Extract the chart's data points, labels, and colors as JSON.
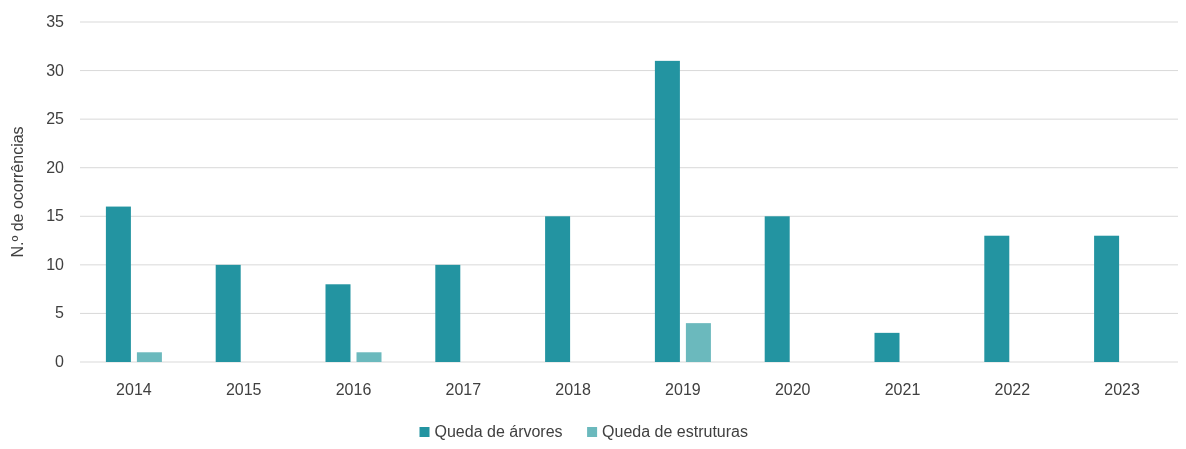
{
  "chart_data": {
    "type": "bar",
    "ylabel": "N.º de ocorrências",
    "categories": [
      "2014",
      "2015",
      "2016",
      "2017",
      "2018",
      "2019",
      "2020",
      "2021",
      "2022",
      "2023"
    ],
    "series": [
      {
        "name": "Queda de árvores",
        "color": "#2394a1",
        "values": [
          16,
          10,
          8,
          10,
          15,
          31,
          15,
          3,
          13,
          13
        ]
      },
      {
        "name": "Queda de estruturas",
        "color": "#6bb9bd",
        "values": [
          1,
          0,
          1,
          0,
          0,
          4,
          0,
          0,
          0,
          0
        ]
      }
    ],
    "ylim": [
      0,
      35
    ],
    "yticks": [
      0,
      5,
      10,
      15,
      20,
      25,
      30,
      35
    ],
    "grid": "y",
    "legend": "bottom"
  }
}
